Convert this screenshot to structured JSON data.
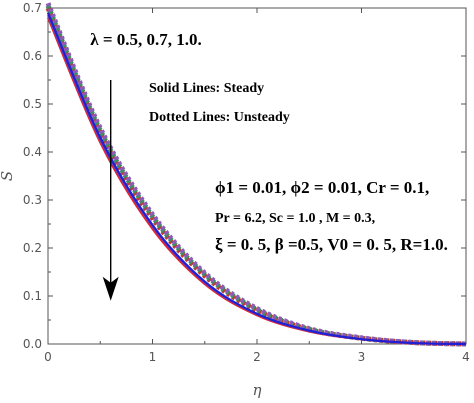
{
  "chart_data": {
    "type": "line",
    "xlabel": "η",
    "ylabel": "S",
    "xlim": [
      0,
      4
    ],
    "ylim": [
      0,
      0.7
    ],
    "x_ticks": [
      "0",
      "1",
      "2",
      "3",
      "4"
    ],
    "y_ticks": [
      "0.0",
      "0.1",
      "0.2",
      "0.3",
      "0.4",
      "0.5",
      "0.6",
      "0.7"
    ],
    "grid": false,
    "series": [
      {
        "style": "solid",
        "color": "#e8212a",
        "x": [
          0,
          0.5,
          1,
          1.5,
          2,
          2.5,
          3,
          3.5,
          4
        ],
        "y": [
          0.68,
          0.42,
          0.24,
          0.125,
          0.06,
          0.026,
          0.01,
          0.002,
          0.0
        ]
      },
      {
        "style": "solid",
        "color": "#7b3fa1",
        "x": [
          0,
          0.5,
          1,
          1.5,
          2,
          2.5,
          3,
          3.5,
          4
        ],
        "y": [
          0.685,
          0.425,
          0.245,
          0.128,
          0.062,
          0.027,
          0.01,
          0.002,
          0.0
        ]
      },
      {
        "style": "solid",
        "color": "#1f1fd6",
        "x": [
          0,
          0.5,
          1,
          1.5,
          2,
          2.5,
          3,
          3.5,
          4
        ],
        "y": [
          0.69,
          0.43,
          0.248,
          0.13,
          0.063,
          0.028,
          0.01,
          0.002,
          0.0
        ]
      },
      {
        "style": "dotted",
        "color": "#c0392b",
        "x": [
          0,
          0.5,
          1,
          1.5,
          2,
          2.5,
          3,
          3.5,
          4
        ],
        "y": [
          0.7,
          0.44,
          0.262,
          0.142,
          0.07,
          0.03,
          0.012,
          0.003,
          0.0
        ]
      },
      {
        "style": "dotted",
        "color": "#3e8e64",
        "x": [
          0,
          0.5,
          1,
          1.5,
          2,
          2.5,
          3,
          3.5,
          4
        ],
        "y": [
          0.705,
          0.445,
          0.266,
          0.145,
          0.072,
          0.031,
          0.012,
          0.003,
          0.0
        ]
      },
      {
        "style": "dotted",
        "color": "#8e5ab8",
        "x": [
          0,
          0.5,
          1,
          1.5,
          2,
          2.5,
          3,
          3.5,
          4
        ],
        "y": [
          0.71,
          0.45,
          0.27,
          0.148,
          0.074,
          0.032,
          0.013,
          0.003,
          0.0
        ]
      }
    ],
    "annotations": {
      "lambda_label": "λ = 0.5, 0.7, 1.0.",
      "legend_solid": "Solid Lines: Steady",
      "legend_dotted": "Dotted Lines: Unsteady",
      "params_line1": "ϕ1 = 0.01, ϕ2 = 0.01, Cr = 0.1,",
      "params_line2": "Pr = 6.2, Sc = 1.0 , M = 0.3,",
      "params_line3": "ξ = 0. 5, β =0.5,  V0 = 0. 5, R=1.0.",
      "arrow": {
        "x": 0.6,
        "y_from": 0.55,
        "y_to": 0.09
      }
    }
  }
}
